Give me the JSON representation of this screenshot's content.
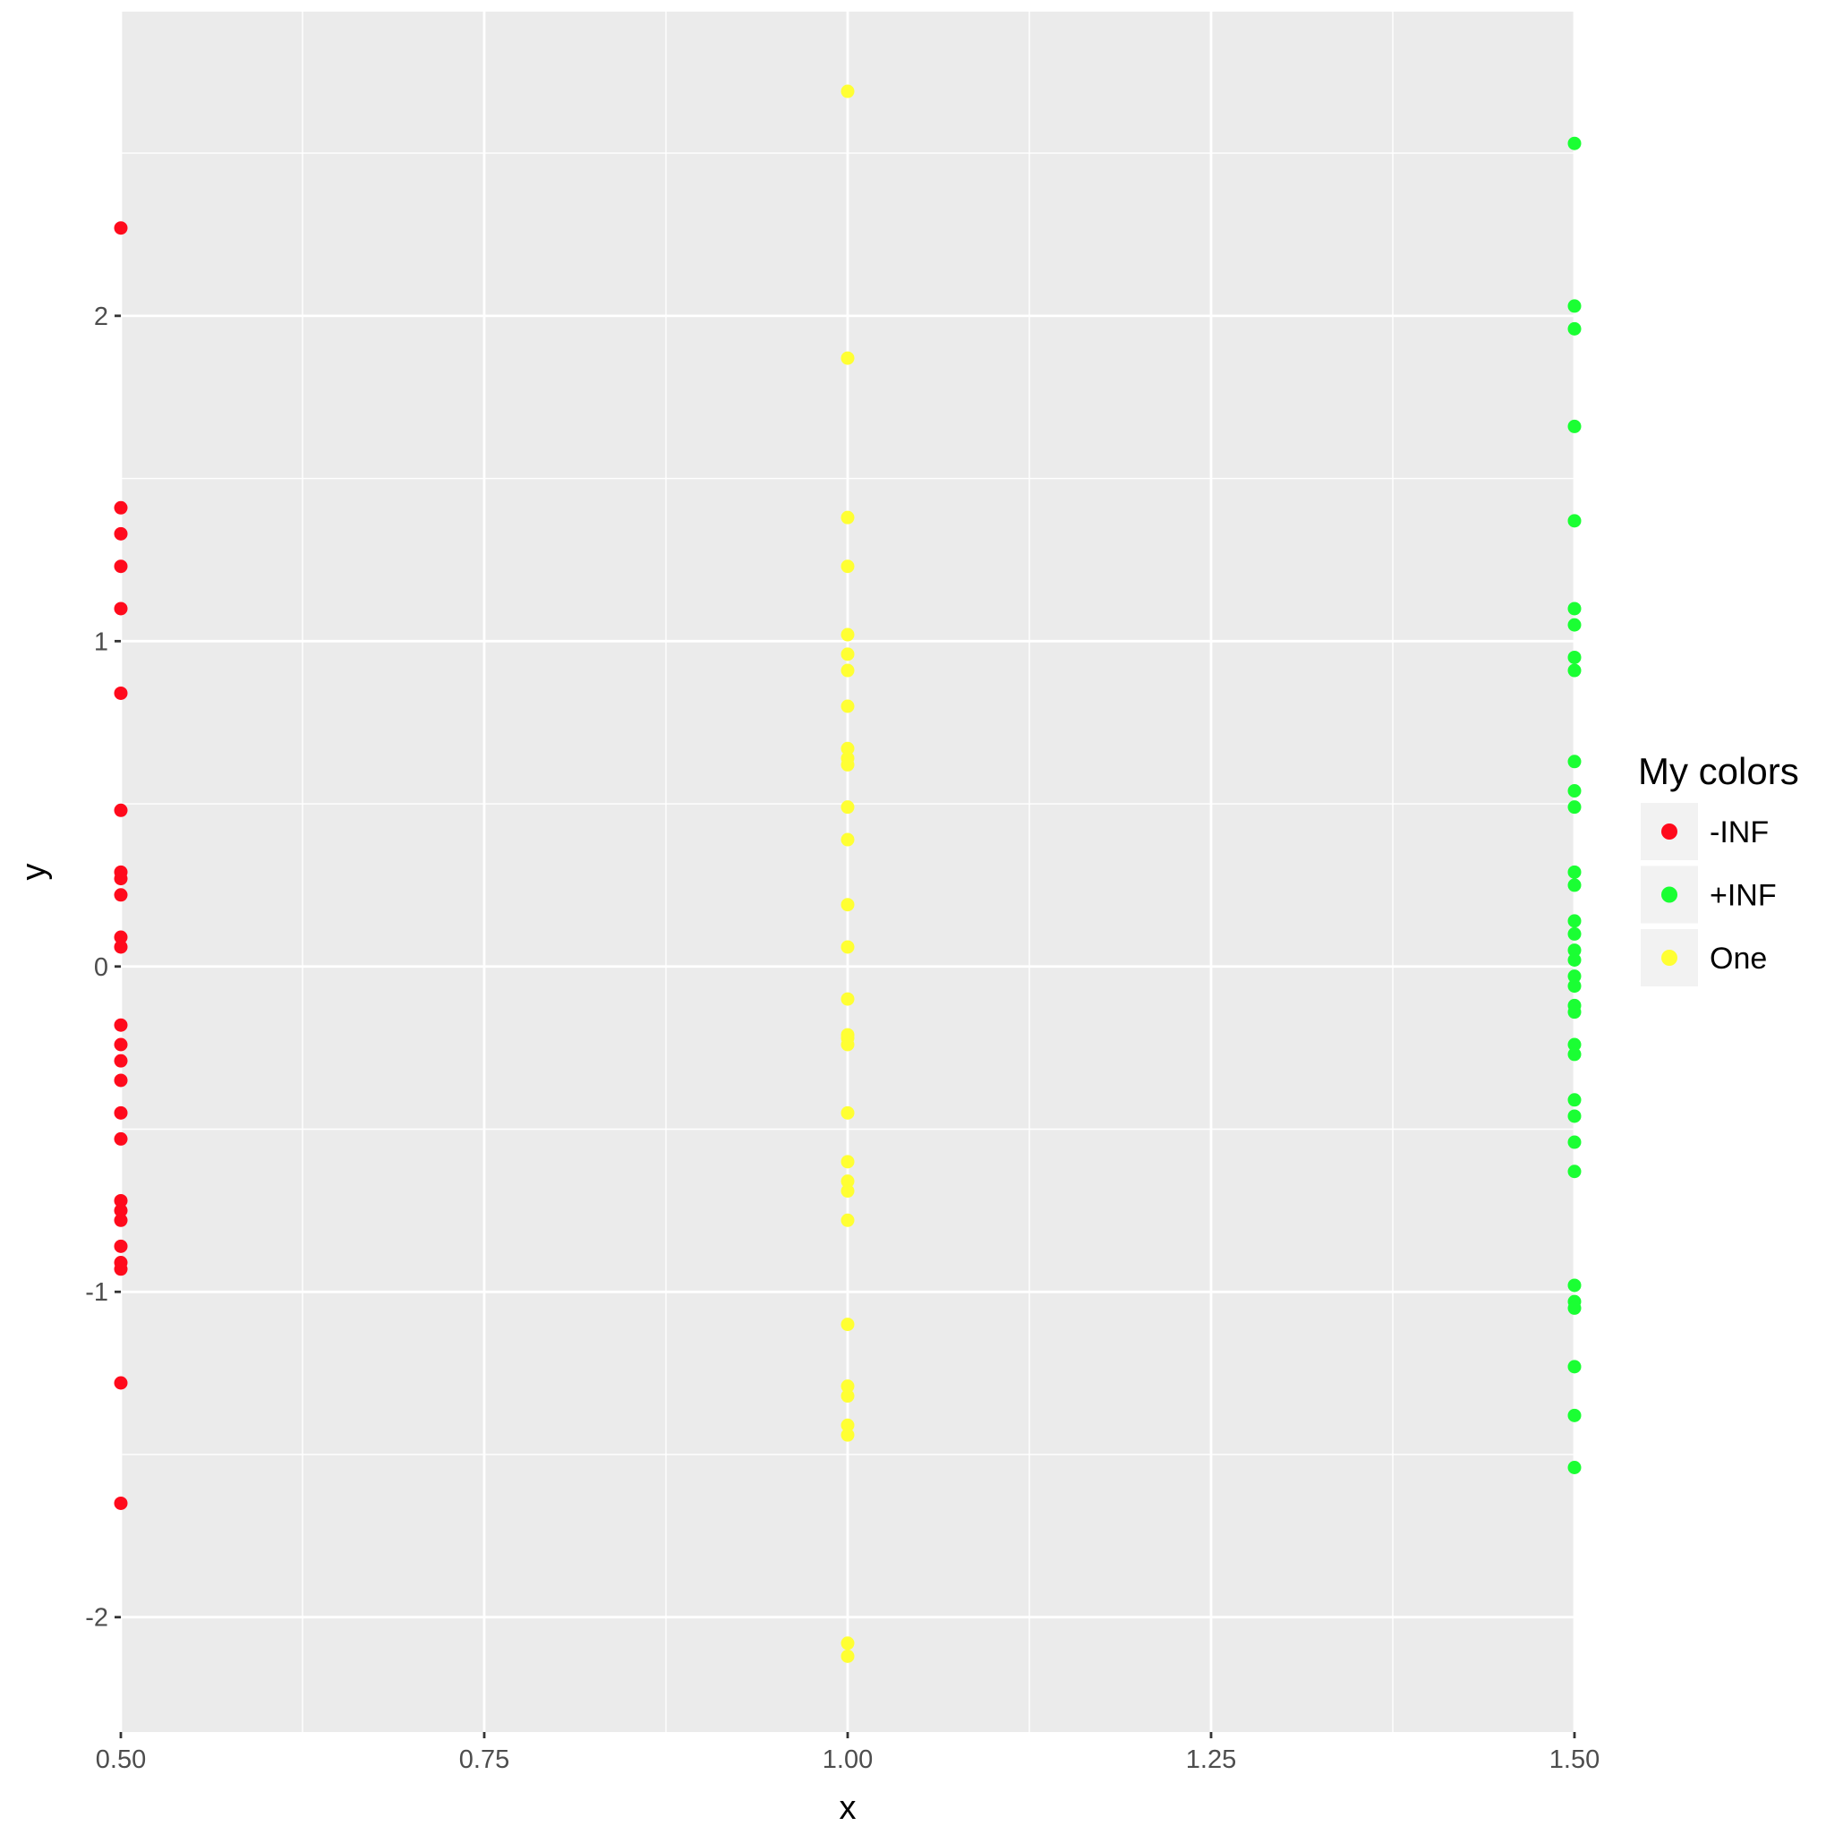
{
  "chart_data": {
    "type": "scatter",
    "title": "",
    "xlabel": "x",
    "ylabel": "y",
    "xlim": [
      0.5,
      1.5
    ],
    "ylim": [
      -2.353,
      2.935
    ],
    "x_ticks": [
      0.5,
      0.75,
      1.0,
      1.25,
      1.5
    ],
    "x_tick_labels": [
      "0.50",
      "0.75",
      "1.00",
      "1.25",
      "1.50"
    ],
    "y_ticks": [
      -2,
      -1,
      0,
      1,
      2
    ],
    "y_tick_labels": [
      "-2",
      "-1",
      "0",
      "1",
      "2"
    ],
    "grid": true,
    "panel_background": "#ebebeb",
    "legend": {
      "title": "My colors",
      "placement": "right"
    },
    "series": [
      {
        "name": "-INF",
        "color": "#ff0a1c",
        "x": 0.5,
        "y": [
          2.27,
          1.41,
          1.33,
          1.23,
          1.1,
          0.84,
          0.48,
          0.29,
          0.27,
          0.22,
          0.09,
          0.06,
          -0.18,
          -0.24,
          -0.29,
          -0.35,
          -0.45,
          -0.53,
          -0.72,
          -0.75,
          -0.78,
          -0.86,
          -0.91,
          -0.93,
          -1.28,
          -1.65
        ]
      },
      {
        "name": "+INF",
        "color": "#1aff33",
        "x": 1.5,
        "y": [
          2.53,
          2.03,
          1.96,
          1.66,
          1.37,
          1.1,
          1.05,
          0.95,
          0.91,
          0.63,
          0.54,
          0.49,
          0.29,
          0.25,
          0.14,
          0.1,
          0.05,
          0.02,
          -0.03,
          -0.06,
          -0.12,
          -0.14,
          -0.24,
          -0.27,
          -0.41,
          -0.46,
          -0.54,
          -0.63,
          -0.98,
          -1.03,
          -1.05,
          -1.23,
          -1.38,
          -1.54
        ]
      },
      {
        "name": "One",
        "color": "#ffff33",
        "x": 1.0,
        "y": [
          2.69,
          1.87,
          1.38,
          1.23,
          1.02,
          0.96,
          0.91,
          0.8,
          0.67,
          0.64,
          0.62,
          0.49,
          0.39,
          0.19,
          0.06,
          -0.1,
          -0.21,
          -0.22,
          -0.24,
          -0.45,
          -0.6,
          -0.66,
          -0.69,
          -0.78,
          -1.1,
          -1.29,
          -1.32,
          -1.41,
          -1.44,
          -2.08,
          -2.12
        ]
      }
    ]
  }
}
